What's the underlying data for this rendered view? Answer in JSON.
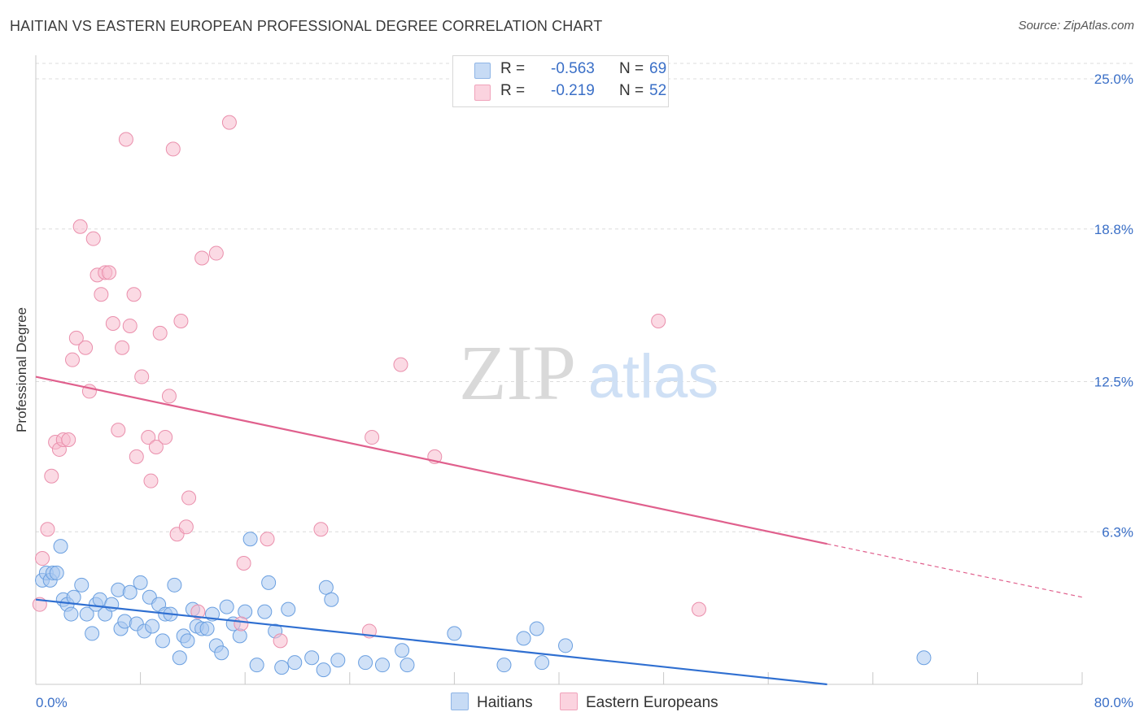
{
  "title": "HAITIAN VS EASTERN EUROPEAN PROFESSIONAL DEGREE CORRELATION CHART",
  "source": "Source: ZipAtlas.com",
  "watermark": {
    "zip": "ZIP",
    "atlas": "atlas"
  },
  "colors": {
    "haitians_fill": "#a9c8f0",
    "haitians_stroke": "#6a9fe0",
    "haitians_line": "#2f6fd1",
    "eastern_fill": "#f7bccd",
    "eastern_stroke": "#ea8fac",
    "eastern_line": "#e0608d",
    "axis_label": "#3a6fc7",
    "grid": "#dcdcdc"
  },
  "legend": {
    "rows": [
      {
        "r_label": "R =",
        "r_value": "-0.563",
        "n_label": "N =",
        "n_value": "69"
      },
      {
        "r_label": "R =",
        "r_value": "-0.219",
        "n_label": "N =",
        "n_value": "52"
      }
    ],
    "bottom": [
      "Haitians",
      "Eastern Europeans"
    ]
  },
  "chart_data": {
    "type": "scatter",
    "title": "HAITIAN VS EASTERN EUROPEAN PROFESSIONAL DEGREE CORRELATION CHART",
    "xlabel": "",
    "ylabel": "Professional Degree",
    "xlim": [
      0,
      80
    ],
    "ylim": [
      0,
      25
    ],
    "x_tick_labels": [
      "0.0%",
      "80.0%"
    ],
    "y_ticks": [
      6.3,
      12.5,
      18.8,
      25.0
    ],
    "y_tick_labels": [
      "6.3%",
      "12.5%",
      "18.8%",
      "25.0%"
    ],
    "grid": true,
    "series": [
      {
        "name": "Haitians",
        "r": -0.563,
        "n": 69,
        "trend": {
          "x0": 0,
          "y0": 3.5,
          "x1": 60.5,
          "y1": 0,
          "dash_to": null
        },
        "points": [
          [
            0.5,
            4.3
          ],
          [
            0.8,
            4.6
          ],
          [
            1.1,
            4.3
          ],
          [
            1.3,
            4.6
          ],
          [
            1.6,
            4.6
          ],
          [
            1.9,
            5.7
          ],
          [
            2.1,
            3.5
          ],
          [
            2.4,
            3.3
          ],
          [
            2.7,
            2.9
          ],
          [
            2.9,
            3.6
          ],
          [
            3.5,
            4.1
          ],
          [
            3.9,
            2.9
          ],
          [
            4.3,
            2.1
          ],
          [
            4.6,
            3.3
          ],
          [
            4.9,
            3.5
          ],
          [
            5.3,
            2.9
          ],
          [
            5.8,
            3.3
          ],
          [
            6.3,
            3.9
          ],
          [
            6.5,
            2.3
          ],
          [
            6.8,
            2.6
          ],
          [
            7.2,
            3.8
          ],
          [
            7.7,
            2.5
          ],
          [
            8.0,
            4.2
          ],
          [
            8.3,
            2.2
          ],
          [
            8.7,
            3.6
          ],
          [
            8.9,
            2.4
          ],
          [
            9.4,
            3.3
          ],
          [
            9.7,
            1.8
          ],
          [
            9.9,
            2.9
          ],
          [
            10.3,
            2.9
          ],
          [
            10.6,
            4.1
          ],
          [
            11.0,
            1.1
          ],
          [
            11.3,
            2.0
          ],
          [
            11.6,
            1.8
          ],
          [
            12.0,
            3.1
          ],
          [
            12.3,
            2.4
          ],
          [
            12.7,
            2.3
          ],
          [
            13.1,
            2.3
          ],
          [
            13.5,
            2.9
          ],
          [
            13.8,
            1.6
          ],
          [
            14.2,
            1.3
          ],
          [
            14.6,
            3.2
          ],
          [
            15.1,
            2.5
          ],
          [
            15.6,
            2.0
          ],
          [
            16.0,
            3.0
          ],
          [
            16.4,
            6.0
          ],
          [
            16.9,
            0.8
          ],
          [
            17.5,
            3.0
          ],
          [
            17.8,
            4.2
          ],
          [
            18.3,
            2.2
          ],
          [
            18.8,
            0.7
          ],
          [
            19.3,
            3.1
          ],
          [
            19.8,
            0.9
          ],
          [
            21.1,
            1.1
          ],
          [
            22.0,
            0.6
          ],
          [
            22.2,
            4.0
          ],
          [
            22.6,
            3.5
          ],
          [
            26.5,
            0.8
          ],
          [
            28.0,
            1.4
          ],
          [
            28.4,
            0.8
          ],
          [
            32.0,
            2.1
          ],
          [
            35.8,
            0.8
          ],
          [
            37.3,
            1.9
          ],
          [
            38.7,
            0.9
          ],
          [
            38.3,
            2.3
          ],
          [
            40.5,
            1.6
          ],
          [
            67.9,
            1.1
          ],
          [
            23.1,
            1.0
          ],
          [
            25.2,
            0.9
          ]
        ]
      },
      {
        "name": "Eastern Europeans",
        "r": -0.219,
        "n": 52,
        "trend": {
          "x0": 0,
          "y0": 12.7,
          "x1": 60.5,
          "y1": 5.8,
          "dash_to": [
            80,
            3.6
          ]
        },
        "points": [
          [
            0.3,
            3.3
          ],
          [
            0.5,
            5.2
          ],
          [
            0.9,
            6.4
          ],
          [
            1.2,
            8.6
          ],
          [
            1.5,
            10.0
          ],
          [
            1.8,
            9.7
          ],
          [
            2.1,
            10.1
          ],
          [
            2.5,
            10.1
          ],
          [
            2.8,
            13.4
          ],
          [
            3.1,
            14.3
          ],
          [
            3.4,
            18.9
          ],
          [
            3.8,
            13.9
          ],
          [
            4.1,
            12.1
          ],
          [
            4.4,
            18.4
          ],
          [
            4.7,
            16.9
          ],
          [
            5.0,
            16.1
          ],
          [
            5.3,
            17.0
          ],
          [
            5.6,
            17.0
          ],
          [
            5.9,
            14.9
          ],
          [
            6.3,
            10.5
          ],
          [
            6.6,
            13.9
          ],
          [
            6.9,
            22.5
          ],
          [
            7.2,
            14.8
          ],
          [
            7.5,
            16.1
          ],
          [
            7.7,
            9.4
          ],
          [
            8.1,
            12.7
          ],
          [
            8.6,
            10.2
          ],
          [
            8.8,
            8.4
          ],
          [
            9.2,
            9.8
          ],
          [
            9.5,
            14.5
          ],
          [
            9.9,
            10.2
          ],
          [
            10.2,
            11.9
          ],
          [
            10.5,
            22.1
          ],
          [
            10.8,
            6.2
          ],
          [
            11.1,
            15.0
          ],
          [
            11.5,
            6.5
          ],
          [
            11.7,
            7.7
          ],
          [
            12.4,
            3.0
          ],
          [
            12.7,
            17.6
          ],
          [
            13.8,
            17.8
          ],
          [
            14.8,
            23.2
          ],
          [
            15.7,
            2.5
          ],
          [
            15.9,
            5.0
          ],
          [
            17.7,
            6.0
          ],
          [
            18.7,
            1.8
          ],
          [
            21.8,
            6.4
          ],
          [
            25.5,
            2.2
          ],
          [
            25.7,
            10.2
          ],
          [
            27.9,
            13.2
          ],
          [
            30.5,
            9.4
          ],
          [
            47.6,
            15.0
          ],
          [
            50.7,
            3.1
          ]
        ]
      }
    ]
  }
}
